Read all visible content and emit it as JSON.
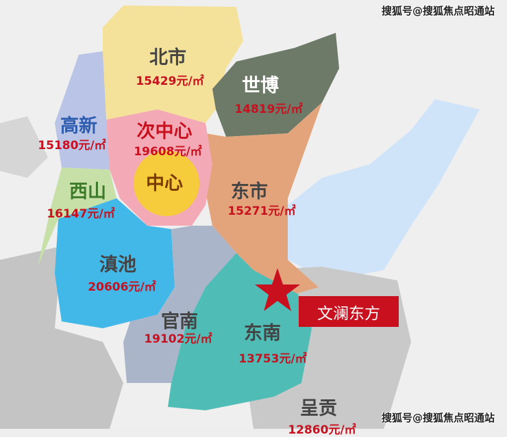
{
  "districts": [
    {
      "name": "北市",
      "price": "15429元/㎡",
      "color": "#f5e29a"
    },
    {
      "name": "世博",
      "price": "14819元/㎡",
      "color": "#6e7a68"
    },
    {
      "name": "高新",
      "price": "15180元/㎡",
      "color": "#b9c4e6"
    },
    {
      "name": "次中心",
      "price": "19608元/㎡",
      "color": "#f4a9b6"
    },
    {
      "name": "中心",
      "price": "",
      "color": "#f7cc3c"
    },
    {
      "name": "西山",
      "price": "16147元/㎡",
      "color": "#c6e0a8"
    },
    {
      "name": "东市",
      "price": "15271元/㎡",
      "color": "#e3a47c"
    },
    {
      "name": "滇池",
      "price": "20606元/㎡",
      "color": "#42b8e8"
    },
    {
      "name": "官南",
      "price": "19102元/㎡",
      "color": "#aab5c9"
    },
    {
      "name": "东南",
      "price": "13753元/㎡",
      "color": "#4fbdb6"
    },
    {
      "name": "呈贡",
      "price": "12860元/㎡",
      "color": "#c9c9c9"
    }
  ],
  "lake_color": "#cfe4f8",
  "project": {
    "name": "文澜东方",
    "marker": "star-icon",
    "color": "#c8101e"
  },
  "watermark": "搜狐号@搜狐焦点昭通站"
}
